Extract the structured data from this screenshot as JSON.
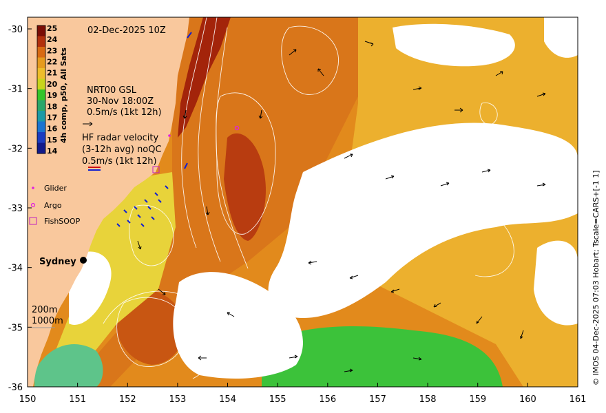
{
  "map": {
    "date_title": "02-Dec-2025 10Z",
    "colorbar_label": "4h comp, p50, All Sats",
    "colorbar_ticks": [
      "25",
      "24",
      "23",
      "22",
      "21",
      "20",
      "19",
      "18",
      "17",
      "16",
      "15",
      "14"
    ],
    "colorbar_colors": [
      "#7a0d05",
      "#b2300c",
      "#d86a12",
      "#e69b1e",
      "#eebd2a",
      "#c8d41c",
      "#34c52a",
      "#2aa66a",
      "#1c9aa6",
      "#1c74d0",
      "#1c3cc0",
      "#121a8a"
    ],
    "nrt_label": "NRT00 GSL",
    "nrt_time": "30-Nov 18:00Z",
    "nrt_scale": "0.5m/s (1kt 12h)",
    "hf_title": "HF radar velocity",
    "hf_avg": "(3-12h avg) noQC",
    "hf_scale": "0.5m/s (1kt 12h)",
    "legend_glider": "Glider",
    "legend_argo": "Argo",
    "legend_fishsoop": "FishSOOP",
    "city_label": "Sydney",
    "isobath_200": "200m",
    "isobath_1000": "1000m",
    "credit": "© IMOS 04-Dec-2025 07:03 Hobart; Tscale=CARS+[-1 1]",
    "x_ticks": [
      "150",
      "151",
      "152",
      "153",
      "154",
      "155",
      "156",
      "157",
      "158",
      "159",
      "160",
      "161"
    ],
    "y_ticks": [
      "-30",
      "-31",
      "-32",
      "-33",
      "-34",
      "-35",
      "-36"
    ],
    "colors": {
      "land": "#f9c89d",
      "ocean_warm": "#e28a1c",
      "ocean_hot": "#c24a10",
      "ocean_core": "#9e1f08",
      "ocean_cool": "#f0b634",
      "ocean_green": "#33c033",
      "ocean_teal": "#5fc07a",
      "cloud": "#ffffff"
    }
  }
}
